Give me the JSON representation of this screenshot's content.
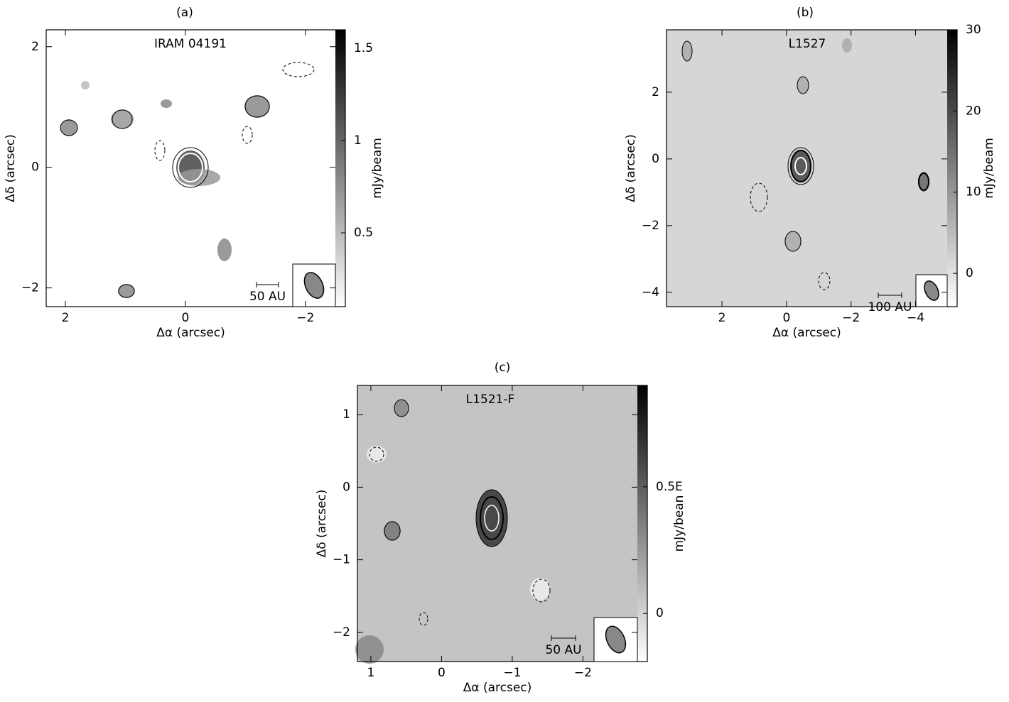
{
  "chart_data": [
    {
      "type": "image",
      "panel": "(a)",
      "title": "IRAM 04191",
      "xlabel": "Δα (arcsec)",
      "ylabel": "Δδ (arcsec)",
      "xlim": [
        2.32,
        -2.5
      ],
      "ylim": [
        -2.31,
        2.28
      ],
      "xticks": [
        2,
        0,
        {
          "value": -2,
          "label": "−2"
        }
      ],
      "yticks": [
        {
          "value": -2,
          "label": "−2"
        },
        0,
        2
      ],
      "colorbar_label": "mJy/beam",
      "clim": [
        0.1,
        1.6
      ],
      "cticks": [
        0.5,
        1,
        1.5
      ],
      "scalebar_label": "50 AU"
    },
    {
      "type": "image",
      "panel": "(b)",
      "title": "L1527",
      "xlabel": "Δα (arcsec)",
      "ylabel": "Δδ (arcsec)",
      "xlim": [
        3.72,
        -4.98
      ],
      "ylim": [
        -4.43,
        3.87
      ],
      "xticks": [
        2,
        0,
        {
          "value": -2,
          "label": "−2"
        },
        {
          "value": -4,
          "label": "−4"
        }
      ],
      "yticks": [
        {
          "value": -4,
          "label": "−4"
        },
        {
          "value": -2,
          "label": "−2"
        },
        0,
        2
      ],
      "colorbar_label": "mJy/beam",
      "clim": [
        -4.1,
        30
      ],
      "cticks": [
        0,
        10,
        20,
        30
      ],
      "scalebar_label": "100 AU"
    },
    {
      "type": "image",
      "panel": "(c)",
      "title": "L1521-F",
      "xlabel": "Δα (arcsec)",
      "ylabel": "Δδ (arcsec)",
      "xlim": [
        1.19,
        -2.77
      ],
      "ylim": [
        -2.4,
        1.4
      ],
      "xticks": [
        1,
        0,
        {
          "value": -1,
          "label": "−1"
        },
        {
          "value": -2,
          "label": "−2"
        }
      ],
      "yticks": [
        {
          "value": -2,
          "label": "−2"
        },
        {
          "value": -1,
          "label": "−1"
        },
        0,
        1
      ],
      "colorbar_label": "mJy/bean",
      "clim": [
        -0.19,
        0.9
      ],
      "cticks": [
        0,
        {
          "value": 0.5,
          "label": "0.5E"
        }
      ],
      "scalebar_label": "50 AU"
    }
  ]
}
